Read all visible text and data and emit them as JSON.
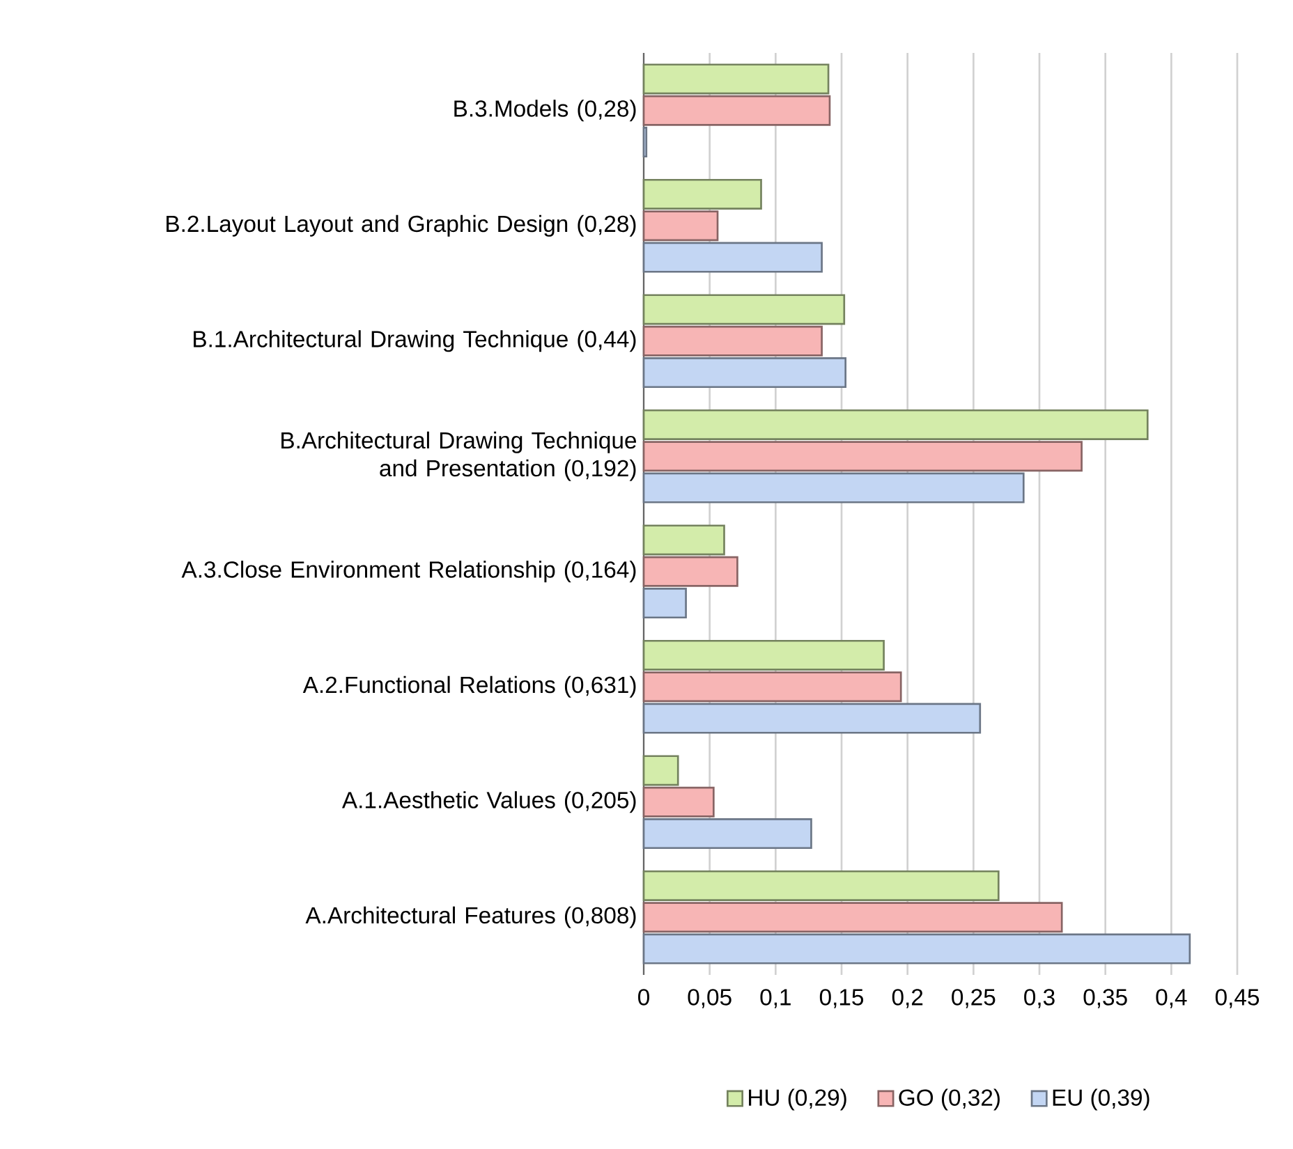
{
  "chart_data": {
    "type": "bar",
    "orientation": "horizontal",
    "categories": [
      "B.3.Models (0,28)",
      "B.2.Layout Layout and Graphic Design (0,28)",
      "B.1.Architectural Drawing Technique (0,44)",
      "B.Architectural Drawing Technique and Presentation (0,192)",
      "A.3.Close Environment Relationship (0,164)",
      "A.2.Functional Relations (0,631)",
      "A.1.Aesthetic Values (0,205)",
      "A.Architectural Features (0,808)"
    ],
    "series": [
      {
        "name": "HU (0,29)",
        "color": "#d3ecaa",
        "values": [
          0.14,
          0.089,
          0.152,
          0.382,
          0.061,
          0.182,
          0.026,
          0.269
        ]
      },
      {
        "name": "GO (0,32)",
        "color": "#f7b5b5",
        "values": [
          0.141,
          0.056,
          0.135,
          0.332,
          0.071,
          0.195,
          0.053,
          0.317
        ]
      },
      {
        "name": "EU (0,39)",
        "color": "#c3d6f3",
        "values": [
          0.002,
          0.135,
          0.153,
          0.288,
          0.032,
          0.255,
          0.127,
          0.414
        ]
      }
    ],
    "xlim": [
      0,
      0.45
    ],
    "xticks": [
      0,
      {
        "value": 0.05,
        "label": "0,05"
      },
      {
        "value": 0.1,
        "label": "0,1"
      },
      {
        "value": 0.15,
        "label": "0,15"
      },
      {
        "value": 0.2,
        "label": "0,2"
      },
      {
        "value": 0.25,
        "label": "0,25"
      },
      {
        "value": 0.3,
        "label": "0,3"
      },
      {
        "value": 0.35,
        "label": "0,35"
      },
      {
        "value": 0.4,
        "label": "0,4"
      },
      {
        "value": 0.45,
        "label": "0,45"
      }
    ],
    "grid": "x",
    "legend": "bottom"
  }
}
